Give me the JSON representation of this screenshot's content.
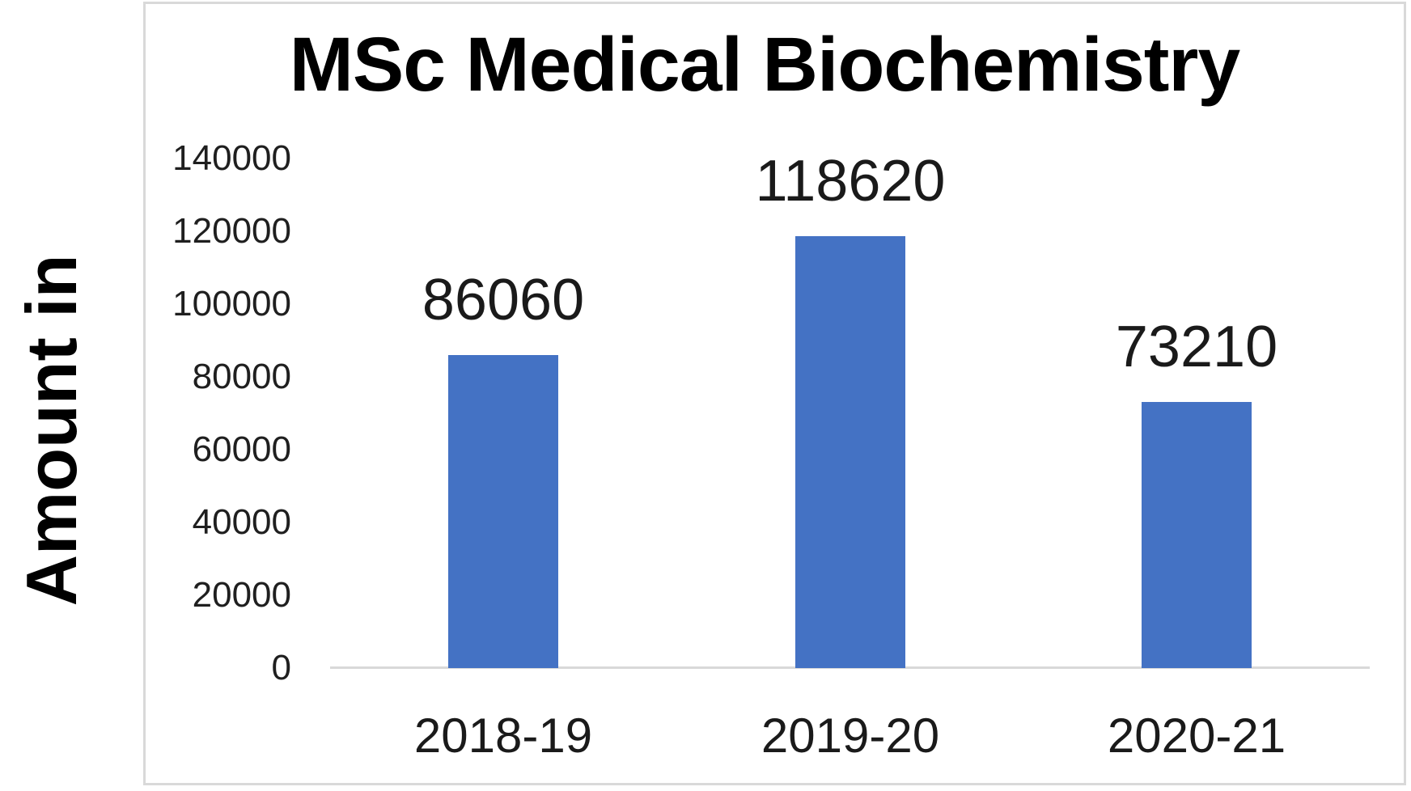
{
  "window": {
    "background_color": "#ffffff"
  },
  "chart": {
    "title": "MSc Medical Biochemistry",
    "y_axis_title": "Amount in",
    "colors": {
      "bar": "#4472C4",
      "axis_line": "#D9D9D9",
      "card_border": "#D9D9D9",
      "title_text": "#000000",
      "label_text": "#1A1A1A"
    }
  },
  "chart_data": {
    "type": "bar",
    "title": "MSc Medical Biochemistry",
    "ylabel": "Amount in",
    "xlabel": "",
    "categories": [
      "2018-19",
      "2019-20",
      "2020-21"
    ],
    "values": [
      86060,
      118620,
      73210
    ],
    "data_labels": [
      "86060",
      "118620",
      "73210"
    ],
    "yticks": [
      0,
      20000,
      40000,
      60000,
      80000,
      100000,
      120000,
      140000
    ],
    "ylim": [
      0,
      140000
    ],
    "grid": false,
    "legend": false,
    "bar_color": "#4472C4"
  }
}
